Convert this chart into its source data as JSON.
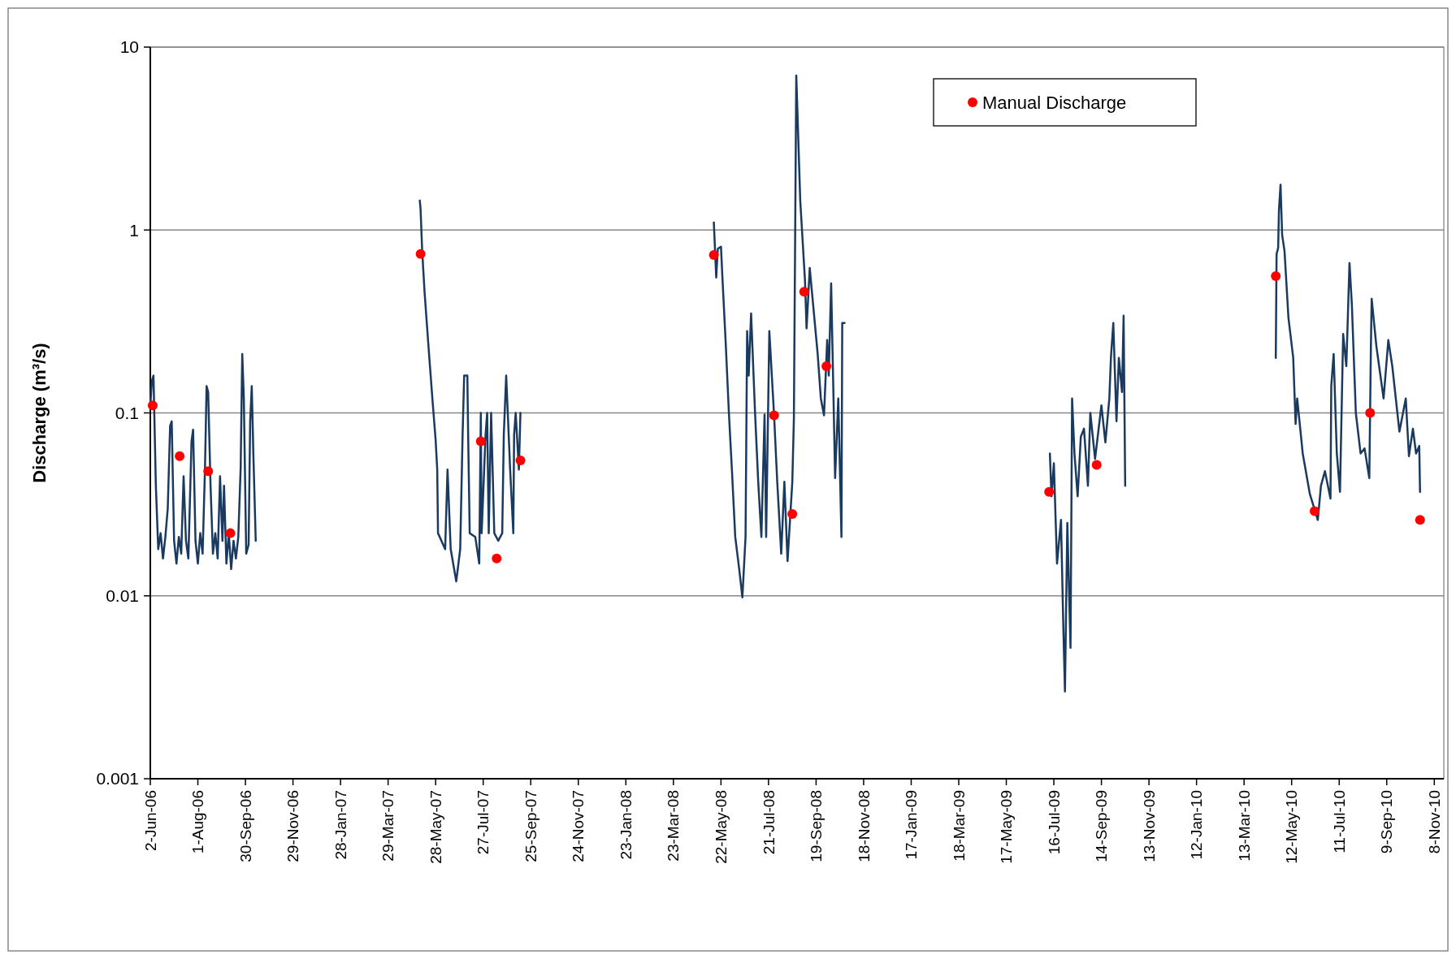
{
  "chart_data": {
    "type": "line",
    "ylabel": "Discharge (m³/s)",
    "log": "y",
    "grid": "y",
    "legend": "top right",
    "xlim": [
      "2006-06-02",
      "2010-11-20"
    ],
    "ylim": [
      0.001,
      10
    ],
    "yticks": [
      0.001,
      0.01,
      0.1,
      1,
      10
    ],
    "xticks": [
      {
        "value": "2006-06-02",
        "label": "2-Jun-06"
      },
      {
        "value": "2006-08-01",
        "label": "1-Aug-06"
      },
      {
        "value": "2006-09-30",
        "label": "30-Sep-06"
      },
      {
        "value": "2006-11-29",
        "label": "29-Nov-06"
      },
      {
        "value": "2007-01-28",
        "label": "28-Jan-07"
      },
      {
        "value": "2007-03-29",
        "label": "29-Mar-07"
      },
      {
        "value": "2007-05-28",
        "label": "28-May-07"
      },
      {
        "value": "2007-07-27",
        "label": "27-Jul-07"
      },
      {
        "value": "2007-09-25",
        "label": "25-Sep-07"
      },
      {
        "value": "2007-11-24",
        "label": "24-Nov-07"
      },
      {
        "value": "2008-01-23",
        "label": "23-Jan-08"
      },
      {
        "value": "2008-03-23",
        "label": "23-Mar-08"
      },
      {
        "value": "2008-05-22",
        "label": "22-May-08"
      },
      {
        "value": "2008-07-21",
        "label": "21-Jul-08"
      },
      {
        "value": "2008-09-19",
        "label": "19-Sep-08"
      },
      {
        "value": "2008-11-18",
        "label": "18-Nov-08"
      },
      {
        "value": "2009-01-17",
        "label": "17-Jan-09"
      },
      {
        "value": "2009-03-18",
        "label": "18-Mar-09"
      },
      {
        "value": "2009-05-17",
        "label": "17-May-09"
      },
      {
        "value": "2009-07-16",
        "label": "16-Jul-09"
      },
      {
        "value": "2009-09-14",
        "label": "14-Sep-09"
      },
      {
        "value": "2009-11-13",
        "label": "13-Nov-09"
      },
      {
        "value": "2010-01-12",
        "label": "12-Jan-10"
      },
      {
        "value": "2010-03-13",
        "label": "13-Mar-10"
      },
      {
        "value": "2010-05-12",
        "label": "12-May-10"
      },
      {
        "value": "2010-07-11",
        "label": "11-Jul-10"
      },
      {
        "value": "2010-09-09",
        "label": "9-Sep-10"
      },
      {
        "value": "2010-11-08",
        "label": "8-Nov-10"
      }
    ],
    "series": [
      {
        "color": "#1b3a60",
        "line_style": "solid",
        "x": [
          "2006-06-02",
          "2006-06-04",
          "2006-06-06",
          "2006-06-09",
          "2006-06-12",
          "2006-06-15",
          "2006-06-18",
          "2006-06-21",
          "2006-06-24",
          "2006-06-27",
          "2006-06-29",
          "2006-07-02",
          "2006-07-05",
          "2006-07-08",
          "2006-07-11",
          "2006-07-14",
          "2006-07-17",
          "2006-07-20",
          "2006-07-24",
          "2006-07-26",
          "2006-07-29",
          "2006-08-01",
          "2006-08-04",
          "2006-08-07",
          "2006-08-10",
          "2006-08-12",
          "2006-08-14",
          "2006-08-17",
          "2006-08-20",
          "2006-08-23",
          "2006-08-26",
          "2006-08-29",
          "2006-09-01",
          "2006-09-03",
          "2006-09-06",
          "2006-09-09",
          "2006-09-12",
          "2006-09-15",
          "2006-09-18",
          "2006-09-21",
          "2006-09-24",
          "2006-09-26",
          "2006-09-28",
          "2006-10-01",
          "2006-10-04",
          "2006-10-06",
          "2006-10-08",
          "2006-10-10",
          "2006-10-13",
          "2007-01-01",
          "2007-05-08",
          "2007-05-09",
          "2007-05-11",
          "2007-05-14",
          "2007-05-19",
          "2007-05-24",
          "2007-05-28",
          "2007-05-30",
          "2007-05-31",
          "2007-06-09",
          "2007-06-12",
          "2007-06-16",
          "2007-06-23",
          "2007-06-28",
          "2007-07-01",
          "2007-07-03",
          "2007-07-07",
          "2007-07-08",
          "2007-07-10",
          "2007-07-17",
          "2007-07-22",
          "2007-07-24",
          "2007-07-25",
          "2007-07-30",
          "2007-08-01",
          "2007-08-03",
          "2007-08-06",
          "2007-08-10",
          "2007-08-15",
          "2007-08-20",
          "2007-08-22",
          "2007-08-25",
          "2007-08-27",
          "2007-08-30",
          "2007-09-03",
          "2007-09-04",
          "2007-09-06",
          "2007-09-10",
          "2007-09-12",
          "2008-01-01",
          "2008-05-13",
          "2008-05-16",
          "2008-05-18",
          "2008-05-22",
          "2008-05-24",
          "2008-05-28",
          "2008-06-01",
          "2008-06-05",
          "2008-06-09",
          "2008-06-14",
          "2008-06-18",
          "2008-06-22",
          "2008-06-24",
          "2008-06-26",
          "2008-06-29",
          "2008-07-04",
          "2008-07-08",
          "2008-07-12",
          "2008-07-16",
          "2008-07-18",
          "2008-07-22",
          "2008-07-28",
          "2008-08-01",
          "2008-08-06",
          "2008-08-10",
          "2008-08-14",
          "2008-08-20",
          "2008-08-22",
          "2008-08-25",
          "2008-08-30",
          "2008-09-05",
          "2008-09-07",
          "2008-09-11",
          "2008-09-21",
          "2008-09-25",
          "2008-09-29",
          "2008-10-03",
          "2008-10-05",
          "2008-10-08",
          "2008-10-11",
          "2008-10-13",
          "2008-10-17",
          "2008-10-21",
          "2008-10-22",
          "2008-10-25",
          "2009-01-01",
          "2009-07-11",
          "2009-07-13",
          "2009-07-16",
          "2009-07-20",
          "2009-07-25",
          "2009-07-28",
          "2009-07-30",
          "2009-08-02",
          "2009-08-06",
          "2009-08-07",
          "2009-08-08",
          "2009-08-11",
          "2009-08-15",
          "2009-08-19",
          "2009-08-23",
          "2009-08-28",
          "2009-08-31",
          "2009-09-06",
          "2009-09-14",
          "2009-09-19",
          "2009-09-24",
          "2009-09-26",
          "2009-09-29",
          "2009-10-03",
          "2009-10-06",
          "2009-10-10",
          "2009-10-12",
          "2009-10-14",
          "2010-01-01",
          "2010-04-22",
          "2010-04-23",
          "2010-04-25",
          "2010-04-26",
          "2010-04-28",
          "2010-04-30",
          "2010-05-03",
          "2010-05-08",
          "2010-05-14",
          "2010-05-17",
          "2010-05-19",
          "2010-05-26",
          "2010-06-04",
          "2010-06-14",
          "2010-06-18",
          "2010-06-23",
          "2010-06-30",
          "2010-07-01",
          "2010-07-04",
          "2010-07-08",
          "2010-07-12",
          "2010-07-16",
          "2010-07-20",
          "2010-07-24",
          "2010-07-27",
          "2010-08-01",
          "2010-08-07",
          "2010-08-12",
          "2010-08-18",
          "2010-08-20",
          "2010-08-21",
          "2010-08-27",
          "2010-09-05",
          "2010-09-11",
          "2010-09-16",
          "2010-09-25",
          "2010-10-03",
          "2010-10-07",
          "2010-10-12",
          "2010-10-16",
          "2010-10-20",
          "2010-10-21"
        ],
        "values": [
          0.11,
          0.15,
          0.16,
          0.04,
          0.018,
          0.022,
          0.016,
          0.021,
          0.03,
          0.085,
          0.09,
          0.02,
          0.015,
          0.021,
          0.017,
          0.045,
          0.02,
          0.016,
          0.07,
          0.081,
          0.02,
          0.015,
          0.022,
          0.017,
          0.05,
          0.14,
          0.13,
          0.04,
          0.017,
          0.022,
          0.016,
          0.045,
          0.02,
          0.04,
          0.015,
          0.022,
          0.014,
          0.02,
          0.016,
          0.021,
          0.05,
          0.21,
          0.12,
          0.017,
          0.019,
          0.09,
          0.14,
          0.06,
          0.02,
          null,
          1.45,
          1.3,
          0.77,
          0.46,
          0.23,
          0.118,
          0.071,
          0.049,
          0.022,
          0.018,
          0.049,
          0.018,
          0.012,
          0.018,
          0.076,
          0.16,
          0.16,
          0.076,
          0.022,
          0.021,
          0.015,
          0.1,
          0.022,
          0.076,
          0.1,
          0.022,
          0.1,
          0.022,
          0.02,
          0.022,
          0.076,
          0.16,
          0.1,
          0.049,
          0.022,
          0.076,
          0.1,
          0.049,
          0.1,
          null,
          1.1,
          0.55,
          0.79,
          0.81,
          0.53,
          0.24,
          0.1,
          0.047,
          0.021,
          0.014,
          0.0098,
          0.021,
          0.28,
          0.16,
          0.35,
          0.1,
          0.042,
          0.021,
          0.098,
          0.021,
          0.28,
          0.097,
          0.042,
          0.017,
          0.042,
          0.0155,
          0.042,
          0.093,
          7,
          1.45,
          0.53,
          0.29,
          0.62,
          0.21,
          0.12,
          0.097,
          0.25,
          0.16,
          0.51,
          0.12,
          0.044,
          0.12,
          0.021,
          0.31,
          0.31,
          null,
          0.06,
          0.035,
          0.053,
          0.015,
          0.026,
          0.0066,
          0.003,
          0.025,
          0.0052,
          0.024,
          0.12,
          0.06,
          0.035,
          0.074,
          0.082,
          0.04,
          0.1,
          0.056,
          0.11,
          0.069,
          0.12,
          0.2,
          0.31,
          0.09,
          0.2,
          0.13,
          0.34,
          0.04,
          null,
          0.2,
          0.74,
          0.8,
          1.28,
          1.77,
          0.94,
          0.77,
          0.33,
          0.2,
          0.087,
          0.12,
          0.06,
          0.036,
          0.026,
          0.04,
          0.048,
          0.034,
          0.14,
          0.21,
          0.06,
          0.037,
          0.27,
          0.18,
          0.66,
          0.39,
          0.1,
          0.06,
          0.064,
          0.044,
          0.23,
          0.42,
          0.23,
          0.12,
          0.25,
          0.18,
          0.079,
          0.12,
          0.058,
          0.082,
          0.06,
          0.066,
          0.037
        ]
      },
      {
        "type": "scatter",
        "name": "Manual Discharge",
        "color": "#ff0000",
        "marker": "circle",
        "x": [
          "2006-06-05",
          "2006-07-09",
          "2006-08-14",
          "2006-09-11",
          "2007-05-09",
          "2007-07-24",
          "2007-08-13",
          "2007-09-12",
          "2008-05-13",
          "2008-07-28",
          "2008-08-20",
          "2008-09-04",
          "2008-10-02",
          "2009-07-10",
          "2009-09-08",
          "2010-04-22",
          "2010-06-10",
          "2010-08-19",
          "2010-10-21"
        ],
        "values": [
          0.11,
          0.058,
          0.048,
          0.022,
          0.74,
          0.07,
          0.016,
          0.055,
          0.73,
          0.097,
          0.028,
          0.46,
          0.18,
          0.037,
          0.052,
          0.56,
          0.029,
          0.1,
          0.026
        ]
      }
    ]
  }
}
